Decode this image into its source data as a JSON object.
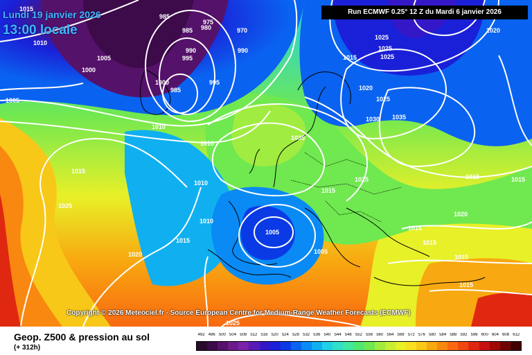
{
  "header": {
    "date_label": "Lundi 19 janvier 2026",
    "time_label": "13:00 locale",
    "run_info": "Run ECMWF 0.25° 12 Z du Mardi 6 janvier 2026"
  },
  "footer": {
    "copyright": "Copyright © 2026 Meteociel.fr - Source European Centre for Medium-Range Weather Forecasts (ECMWF)",
    "title": "Geop. Z500 & pression au sol",
    "subtitle": "(+ 312h)"
  },
  "legend": {
    "values": [
      "492",
      "496",
      "500",
      "504",
      "508",
      "512",
      "516",
      "520",
      "524",
      "528",
      "532",
      "536",
      "540",
      "544",
      "548",
      "552",
      "556",
      "560",
      "564",
      "568",
      "572",
      "576",
      "580",
      "584",
      "588",
      "592",
      "596",
      "600",
      "604",
      "608",
      "612"
    ],
    "colors": [
      "#2a0a2a",
      "#3d0a4a",
      "#55126a",
      "#6c1a8a",
      "#7a22a8",
      "#5a1ab8",
      "#3418c8",
      "#1a20d8",
      "#0a3ae6",
      "#0a62f0",
      "#0a8af4",
      "#10b0f0",
      "#20d0e8",
      "#30e0c8",
      "#40e8a0",
      "#50e870",
      "#70e850",
      "#a0ec40",
      "#c8f030",
      "#e8f028",
      "#f8e020",
      "#f8c818",
      "#f8a810",
      "#f88810",
      "#f86810",
      "#f04810",
      "#e02810",
      "#c81010",
      "#a00808",
      "#700404",
      "#400000"
    ]
  },
  "isobars": [
    {
      "value": "985",
      "pos": "low-north"
    },
    {
      "value": "980",
      "pos": "low-north"
    },
    {
      "value": "975",
      "pos": "low-north"
    },
    {
      "value": "970",
      "pos": "low-north"
    },
    {
      "value": "990",
      "pos": "low-north"
    },
    {
      "value": "995",
      "pos": "low-north"
    },
    {
      "value": "1000",
      "pos": "atlantic"
    },
    {
      "value": "1005",
      "pos": "atlantic"
    },
    {
      "value": "1010",
      "pos": "atlantic"
    },
    {
      "value": "1015",
      "pos": "atlantic"
    },
    {
      "value": "1020",
      "pos": "atlantic"
    },
    {
      "value": "1025",
      "pos": "atlantic"
    },
    {
      "value": "1030",
      "pos": "russia"
    },
    {
      "value": "1035",
      "pos": "russia"
    }
  ]
}
